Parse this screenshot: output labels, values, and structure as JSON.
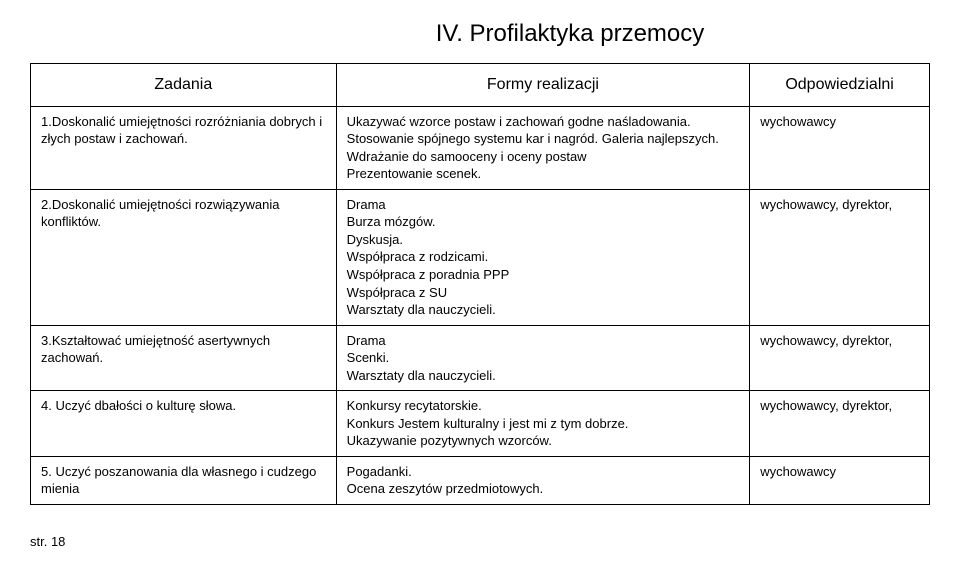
{
  "title": "IV. Profilaktyka przemocy",
  "headers": {
    "col1": "Zadania",
    "col2": "Formy realizacji",
    "col3": "Odpowiedzialni"
  },
  "rows": [
    {
      "zadania": "1.Doskonalić umiejętności rozróżniania dobrych i złych postaw i zachowań.",
      "formy": "Ukazywać wzorce postaw i zachowań godne naśladowania.\nStosowanie spójnego systemu kar i nagród. Galeria najlepszych.\nWdrażanie do samooceny i oceny postaw\nPrezentowanie scenek.",
      "odp": "wychowawcy"
    },
    {
      "zadania": "2.Doskonalić umiejętności rozwiązywania konfliktów.",
      "formy": "Drama\nBurza mózgów.\nDyskusja.\nWspółpraca z rodzicami.\nWspółpraca z poradnia PPP\nWspółpraca z SU\nWarsztaty dla nauczycieli.",
      "odp": "wychowawcy, dyrektor,"
    },
    {
      "zadania": "3.Kształtować umiejętność asertywnych zachowań.",
      "formy": "Drama\nScenki.\nWarsztaty dla nauczycieli.",
      "odp": "wychowawcy, dyrektor,"
    },
    {
      "zadania": "4. Uczyć dbałości o kulturę słowa.",
      "formy": "Konkursy recytatorskie.\nKonkurs Jestem kulturalny i jest mi z tym dobrze.\nUkazywanie pozytywnych wzorców.",
      "odp": "wychowawcy, dyrektor,"
    },
    {
      "zadania": "5. Uczyć poszanowania dla własnego i cudzego mienia",
      "formy": "Pogadanki.\nOcena zeszytów przedmiotowych.",
      "odp": "wychowawcy"
    }
  ],
  "footer": "str. 18"
}
